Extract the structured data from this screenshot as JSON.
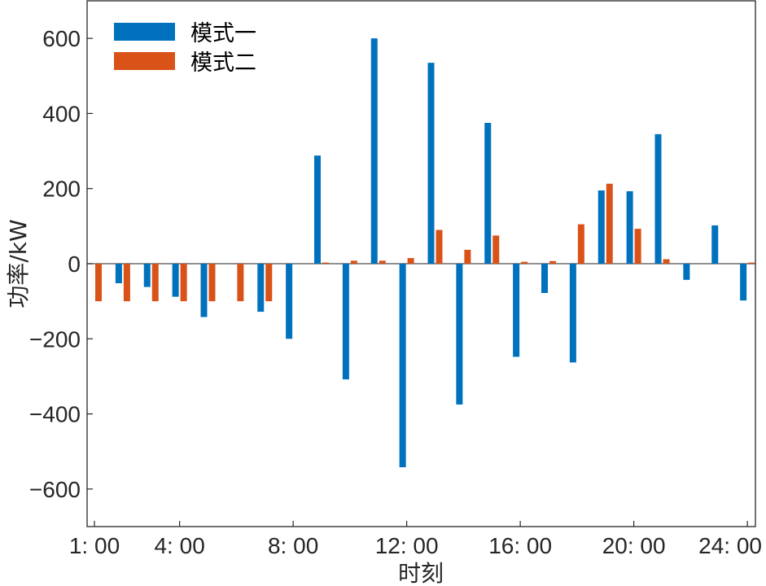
{
  "chart_data": {
    "type": "bar",
    "title": "",
    "xlabel": "时刻",
    "ylabel": "功率/kW",
    "ylim": [
      -700,
      700
    ],
    "yticks": [
      -600,
      -400,
      -200,
      0,
      200,
      400,
      600
    ],
    "ytick_labels": [
      "−600",
      "−400",
      "−200",
      "0",
      "200",
      "400",
      "600"
    ],
    "xtick_labels": [
      "1: 00",
      "4: 00",
      "8: 00",
      "12: 00",
      "16: 00",
      "20: 00",
      "24: 00"
    ],
    "xtick_hours": [
      1,
      4,
      8,
      12,
      16,
      20,
      24
    ],
    "categories": [
      1,
      2,
      3,
      4,
      5,
      6,
      7,
      8,
      9,
      10,
      11,
      12,
      13,
      14,
      15,
      16,
      17,
      18,
      19,
      20,
      21,
      22,
      23,
      24
    ],
    "series": [
      {
        "name": "模式一",
        "color": "#0072BD",
        "values": [
          0,
          -52,
          -62,
          -88,
          -142,
          0,
          -128,
          -200,
          288,
          -308,
          600,
          -542,
          535,
          -375,
          375,
          -248,
          -78,
          -263,
          195,
          193,
          345,
          -43,
          102,
          -98
        ]
      },
      {
        "name": "模式二",
        "color": "#D95319",
        "values": [
          -100,
          -100,
          -100,
          -100,
          -100,
          -100,
          -100,
          0,
          3,
          8,
          8,
          15,
          90,
          37,
          75,
          5,
          7,
          105,
          213,
          93,
          12,
          0,
          0,
          3
        ]
      }
    ],
    "legend": "top-left",
    "grid": false
  }
}
